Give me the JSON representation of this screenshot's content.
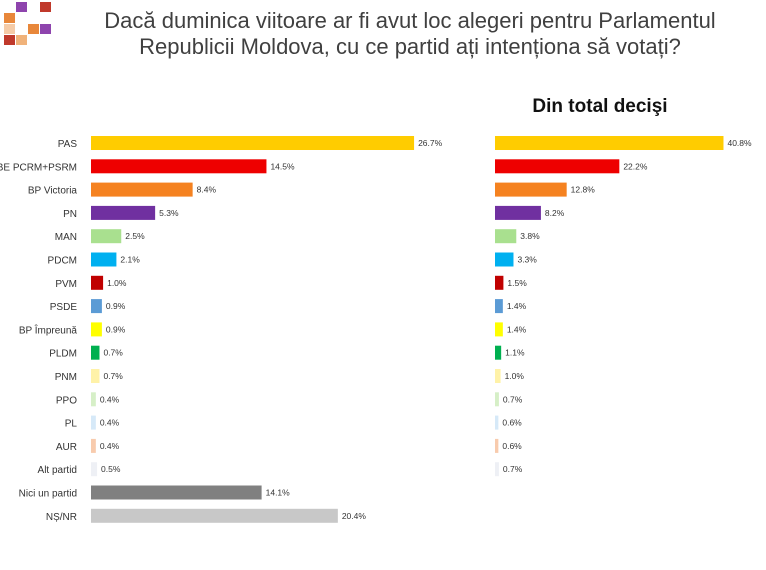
{
  "title_lines": [
    "Dacă duminica viitoare ar fi avut loc alegeri pentru Parlamentul",
    "Republicii Moldova, cu ce partid ați intenționa să votați?"
  ],
  "logo": {
    "name": "pixel-mosaic-logo",
    "colors": [
      "#e8873a",
      "#c0392b",
      "#8e44ad",
      "#f0b27a",
      "#f5cba7"
    ]
  },
  "chart_data": [
    {
      "type": "bar",
      "orientation": "horizontal",
      "title": "",
      "categories": [
        "PAS",
        "BE PCRM+PSRM",
        "BP Victoria",
        "PN",
        "MAN",
        "PDCM",
        "PVM",
        "PSDE",
        "BP Împreună",
        "PLDM",
        "PNM",
        "PPO",
        "PL",
        "AUR",
        "Alt partid",
        "Nici un partid",
        "NȘ/NR"
      ],
      "values": [
        26.7,
        14.5,
        8.4,
        5.3,
        2.5,
        2.1,
        1.0,
        0.9,
        0.9,
        0.7,
        0.7,
        0.4,
        0.4,
        0.4,
        0.5,
        14.1,
        20.4
      ],
      "value_labels": [
        "26.7%",
        "14.5%",
        "8.4%",
        "5.3%",
        "2.5%",
        "2.1%",
        "1.0%",
        "0.9%",
        "0.9%",
        "0.7%",
        "0.7%",
        "0.4%",
        "0.4%",
        "0.4%",
        "0.5%",
        "14.1%",
        "20.4%"
      ],
      "colors": [
        "#ffcc00",
        "#ee0000",
        "#f58220",
        "#7030a0",
        "#a9e08f",
        "#00b0f0",
        "#c00000",
        "#5b9bd5",
        "#ffff00",
        "#00b050",
        "#fff2a8",
        "#d6efc7",
        "#d6e9f8",
        "#f8cbad",
        "#eef0f5",
        "#808080",
        "#c8c8c8"
      ],
      "grid": false,
      "legend": "none"
    },
    {
      "type": "bar",
      "orientation": "horizontal",
      "title": "Din total decişi",
      "categories": [
        "PAS",
        "BE PCRM+PSRM",
        "BP Victoria",
        "PN",
        "MAN",
        "PDCM",
        "PVM",
        "PSDE",
        "BP Împreună",
        "PLDM",
        "PNM",
        "PPO",
        "PL",
        "AUR",
        "Alt partid"
      ],
      "values": [
        40.8,
        22.2,
        12.8,
        8.2,
        3.8,
        3.3,
        1.5,
        1.4,
        1.4,
        1.1,
        1.0,
        0.7,
        0.6,
        0.6,
        0.7
      ],
      "value_labels": [
        "40.8%",
        "22.2%",
        "12.8%",
        "8.2%",
        "3.8%",
        "3.3%",
        "1.5%",
        "1.4%",
        "1.4%",
        "1.1%",
        "1.0%",
        "0.7%",
        "0.6%",
        "0.6%",
        "0.7%"
      ],
      "colors": [
        "#ffcc00",
        "#ee0000",
        "#f58220",
        "#7030a0",
        "#a9e08f",
        "#00b0f0",
        "#c00000",
        "#5b9bd5",
        "#ffff00",
        "#00b050",
        "#fff2a8",
        "#d6efc7",
        "#d6e9f8",
        "#f8cbad",
        "#eef0f5"
      ],
      "grid": false,
      "legend": "none"
    }
  ]
}
